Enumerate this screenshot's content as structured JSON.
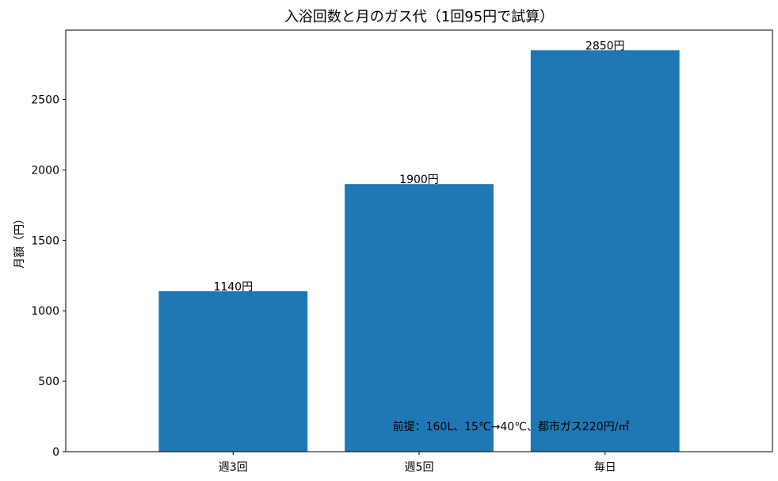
{
  "chart_data": {
    "type": "bar",
    "title": "入浴回数と月のガス代（1回95円で試算）",
    "xlabel": "",
    "ylabel": "月額（円）",
    "categories": [
      "週3回",
      "週5回",
      "毎日"
    ],
    "values": [
      1140,
      1900,
      2850
    ],
    "data_labels": [
      "1140円",
      "1900円",
      "2850円"
    ],
    "ylim": [
      0,
      2992.5
    ],
    "yticks": [
      0,
      500,
      1000,
      1500,
      2000,
      2500
    ],
    "ytick_labels": [
      "0",
      "500",
      "1000",
      "1500",
      "2000",
      "2500"
    ],
    "annotation": "前提：160L、15℃→40℃、都市ガス220円/㎥",
    "bar_color": "#1f77b4",
    "grid": false,
    "legend": "none"
  }
}
